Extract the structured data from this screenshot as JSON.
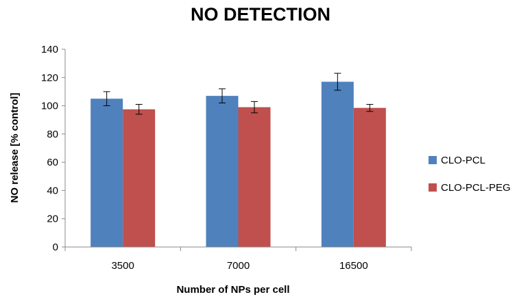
{
  "chart_data": {
    "type": "bar",
    "title": "NO DETECTION",
    "xlabel": "Number of NPs per cell",
    "ylabel": "NO release [% control]",
    "categories": [
      "3500",
      "7000",
      "16500"
    ],
    "ylim": [
      0,
      140
    ],
    "yticks": [
      0,
      20,
      40,
      60,
      80,
      100,
      120,
      140
    ],
    "grid": false,
    "legend_position": "right",
    "series": [
      {
        "name": "CLO-PCL",
        "color": "#4f81bd",
        "values": [
          105,
          107,
          117
        ],
        "errors": [
          5,
          5,
          6
        ]
      },
      {
        "name": "CLO-PCL-PEG",
        "color": "#c0504d",
        "values": [
          97.5,
          99,
          98.5
        ],
        "errors": [
          3.5,
          4,
          2.5
        ]
      }
    ]
  }
}
